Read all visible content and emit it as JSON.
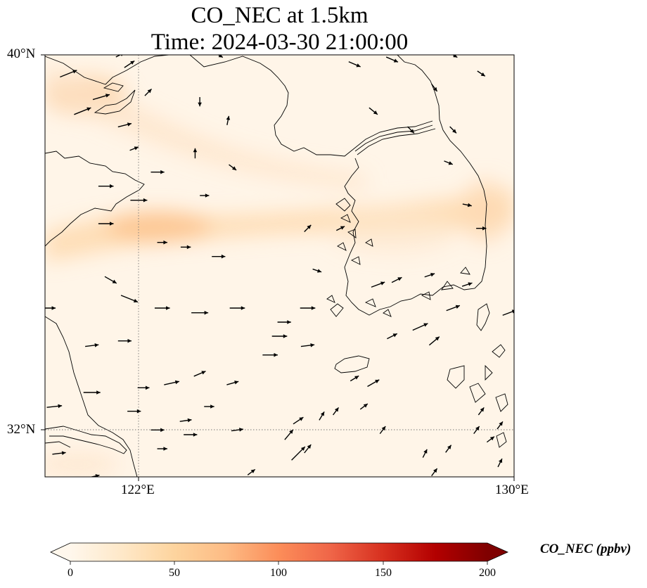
{
  "title": {
    "line1": "CO_NEC at 1.5km",
    "line2": "Time: 2024-03-30 21:00:00"
  },
  "axes": {
    "lat_labels": [
      "40°N",
      "32°N"
    ],
    "lon_labels": [
      "122°E",
      "130°E"
    ],
    "lat_range": [
      31,
      40
    ],
    "lon_range": [
      120,
      130
    ],
    "gridlines": {
      "lat": [
        32
      ],
      "lon": [
        122
      ]
    }
  },
  "colorbar": {
    "label": "CO_NEC (ppbv)",
    "ticks": [
      "0",
      "50",
      "100",
      "150",
      "200"
    ],
    "range": [
      0,
      200
    ],
    "extend": "both",
    "colors": [
      "#fff7ec",
      "#fee8c8",
      "#fdd49e",
      "#fdbb84",
      "#fc8d59",
      "#ef6548",
      "#d7301f",
      "#b30000",
      "#7f0000"
    ]
  },
  "chart_data": {
    "type": "heatmap",
    "variable": "CO_NEC",
    "units": "ppbv",
    "field_description": "band of elevated CO_NEC (about 40-60 ppbv) crossing from 120E 34.5N through 123E 35.3N toward 129E 35.5N; secondary maximum near 120.5-122E 39.3N; background about 5-20 ppbv",
    "wind_vectors": [
      {
        "lon": 120.5,
        "lat": 39.6,
        "u": 1,
        "v": 0.4
      },
      {
        "lon": 120.8,
        "lat": 38.8,
        "u": 1,
        "v": 0.4
      },
      {
        "lon": 121.2,
        "lat": 39.1,
        "u": 1,
        "v": 0.3
      },
      {
        "lon": 121.7,
        "lat": 38.5,
        "u": 0.8,
        "v": 0.2
      },
      {
        "lon": 121.8,
        "lat": 39.8,
        "u": 0.6,
        "v": 0.4
      },
      {
        "lon": 121.9,
        "lat": 38.0,
        "u": 0.5,
        "v": 0.2
      },
      {
        "lon": 122.4,
        "lat": 37.5,
        "u": 0.8,
        "v": 0
      },
      {
        "lon": 121.3,
        "lat": 37.2,
        "u": 0.9,
        "v": 0
      },
      {
        "lon": 122.0,
        "lat": 36.9,
        "u": 1,
        "v": 0
      },
      {
        "lon": 123.2,
        "lat": 37.9,
        "u": 0,
        "v": 0.6
      },
      {
        "lon": 123.4,
        "lat": 37.0,
        "u": 0.4,
        "v": 0
      },
      {
        "lon": 123.9,
        "lat": 38.6,
        "u": 0.1,
        "v": 0.5
      },
      {
        "lon": 124.0,
        "lat": 37.6,
        "u": 0.4,
        "v": -0.3
      },
      {
        "lon": 123.3,
        "lat": 39.0,
        "u": 0,
        "v": -0.5
      },
      {
        "lon": 122.2,
        "lat": 39.2,
        "u": 0.4,
        "v": 0.4
      },
      {
        "lon": 121.3,
        "lat": 36.4,
        "u": 0.9,
        "v": 0
      },
      {
        "lon": 122.5,
        "lat": 36.0,
        "u": 0.6,
        "v": 0
      },
      {
        "lon": 123.0,
        "lat": 35.9,
        "u": 0.6,
        "v": 0
      },
      {
        "lon": 123.7,
        "lat": 35.7,
        "u": 0.8,
        "v": 0
      },
      {
        "lon": 121.4,
        "lat": 35.2,
        "u": 0.7,
        "v": -0.4
      },
      {
        "lon": 121.8,
        "lat": 34.8,
        "u": 1,
        "v": -0.4
      },
      {
        "lon": 122.5,
        "lat": 34.6,
        "u": 0.9,
        "v": 0
      },
      {
        "lon": 123.3,
        "lat": 34.5,
        "u": 1,
        "v": 0
      },
      {
        "lon": 124.1,
        "lat": 34.6,
        "u": 0.9,
        "v": 0
      },
      {
        "lon": 120.1,
        "lat": 34.6,
        "u": 0.7,
        "v": 0
      },
      {
        "lon": 121.0,
        "lat": 33.8,
        "u": 0.8,
        "v": 0.1
      },
      {
        "lon": 121.7,
        "lat": 33.9,
        "u": 0.8,
        "v": 0
      },
      {
        "lon": 122.1,
        "lat": 32.9,
        "u": 0.7,
        "v": 0
      },
      {
        "lon": 121.9,
        "lat": 32.4,
        "u": 0.8,
        "v": 0
      },
      {
        "lon": 121.0,
        "lat": 32.8,
        "u": 1,
        "v": 0
      },
      {
        "lon": 120.2,
        "lat": 32.5,
        "u": 0.9,
        "v": 0.1
      },
      {
        "lon": 120.3,
        "lat": 31.5,
        "u": 0.8,
        "v": 0.1
      },
      {
        "lon": 121.0,
        "lat": 31.0,
        "u": 0.9,
        "v": 0.2
      },
      {
        "lon": 122.5,
        "lat": 31.6,
        "u": 0.6,
        "v": 0
      },
      {
        "lon": 122.4,
        "lat": 32.0,
        "u": 0.8,
        "v": 0
      },
      {
        "lon": 123.1,
        "lat": 31.9,
        "u": 0.8,
        "v": 0
      },
      {
        "lon": 122.7,
        "lat": 33.0,
        "u": 0.9,
        "v": 0.2
      },
      {
        "lon": 123.0,
        "lat": 32.2,
        "u": 0.7,
        "v": 0.1
      },
      {
        "lon": 123.5,
        "lat": 32.5,
        "u": 0.6,
        "v": 0
      },
      {
        "lon": 123.3,
        "lat": 33.2,
        "u": 0.7,
        "v": 0.3
      },
      {
        "lon": 124.0,
        "lat": 33.0,
        "u": 0.7,
        "v": 0.2
      },
      {
        "lon": 124.1,
        "lat": 32.0,
        "u": 0.7,
        "v": 0.1
      },
      {
        "lon": 124.4,
        "lat": 31.1,
        "u": 0.4,
        "v": 0.3
      },
      {
        "lon": 124.8,
        "lat": 33.6,
        "u": 0.9,
        "v": 0
      },
      {
        "lon": 125.0,
        "lat": 34.0,
        "u": 0.9,
        "v": 0
      },
      {
        "lon": 125.1,
        "lat": 34.3,
        "u": 0.8,
        "v": 0
      },
      {
        "lon": 125.6,
        "lat": 33.8,
        "u": 0.8,
        "v": 0.1
      },
      {
        "lon": 125.6,
        "lat": 34.6,
        "u": 0.9,
        "v": 0
      },
      {
        "lon": 125.4,
        "lat": 32.2,
        "u": 0.6,
        "v": 0.4
      },
      {
        "lon": 125.2,
        "lat": 31.9,
        "u": 0.5,
        "v": 0.6
      },
      {
        "lon": 125.4,
        "lat": 31.5,
        "u": 0.8,
        "v": 0.8
      },
      {
        "lon": 125.9,
        "lat": 32.3,
        "u": 0.3,
        "v": 0.5
      },
      {
        "lon": 126.2,
        "lat": 32.4,
        "u": 0.3,
        "v": 0.4
      },
      {
        "lon": 125.6,
        "lat": 31.6,
        "u": 0.4,
        "v": 0.5
      },
      {
        "lon": 126.0,
        "lat": 30.7,
        "u": 0.3,
        "v": 0.4
      },
      {
        "lon": 126.8,
        "lat": 32.5,
        "u": 0.4,
        "v": 0.3
      },
      {
        "lon": 127.2,
        "lat": 32.0,
        "u": 0.3,
        "v": 0.4
      },
      {
        "lon": 126.6,
        "lat": 33.1,
        "u": 0.5,
        "v": 0.3
      },
      {
        "lon": 127.0,
        "lat": 33.0,
        "u": 0.7,
        "v": 0.4
      },
      {
        "lon": 127.4,
        "lat": 34.0,
        "u": 0.6,
        "v": 0.3
      },
      {
        "lon": 125.8,
        "lat": 35.4,
        "u": 0.3,
        "v": -0.1
      },
      {
        "lon": 125.6,
        "lat": 36.3,
        "u": 0.4,
        "v": 0.4
      },
      {
        "lon": 126.3,
        "lat": 36.3,
        "u": 0.4,
        "v": 0.2
      },
      {
        "lon": 127.1,
        "lat": 35.1,
        "u": 0.8,
        "v": 0.3
      },
      {
        "lon": 127.5,
        "lat": 35.2,
        "u": 0.6,
        "v": 0.3
      },
      {
        "lon": 128.0,
        "lat": 34.2,
        "u": 0.9,
        "v": 0.4
      },
      {
        "lon": 128.7,
        "lat": 34.6,
        "u": 0.8,
        "v": 0.3
      },
      {
        "lon": 129.0,
        "lat": 35.1,
        "u": 0.6,
        "v": 0.2
      },
      {
        "lon": 129.9,
        "lat": 34.5,
        "u": 0.8,
        "v": 0.3
      },
      {
        "lon": 129.3,
        "lat": 32.4,
        "u": 0.3,
        "v": 0.4
      },
      {
        "lon": 129.5,
        "lat": 31.8,
        "u": 0.4,
        "v": 0.3
      },
      {
        "lon": 129.7,
        "lat": 32.1,
        "u": 0.3,
        "v": 0.4
      },
      {
        "lon": 129.2,
        "lat": 32.0,
        "u": 0.3,
        "v": 0.4
      },
      {
        "lon": 128.6,
        "lat": 31.6,
        "u": 0.3,
        "v": 0.4
      },
      {
        "lon": 128.1,
        "lat": 31.5,
        "u": 0.2,
        "v": 0.4
      },
      {
        "lon": 128.3,
        "lat": 31.1,
        "u": 0.3,
        "v": 0.4
      },
      {
        "lon": 129.0,
        "lat": 30.8,
        "u": 0.2,
        "v": 0.3
      },
      {
        "lon": 129.7,
        "lat": 31.3,
        "u": 0.2,
        "v": 0.4
      },
      {
        "lon": 127.0,
        "lat": 38.8,
        "u": 0.5,
        "v": -0.4
      },
      {
        "lon": 127.8,
        "lat": 38.4,
        "u": 0.3,
        "v": -0.3
      },
      {
        "lon": 128.3,
        "lat": 39.3,
        "u": 0.3,
        "v": -0.4
      },
      {
        "lon": 128.7,
        "lat": 38.4,
        "u": 0.3,
        "v": -0.3
      },
      {
        "lon": 129.3,
        "lat": 39.6,
        "u": 0.3,
        "v": -0.2
      },
      {
        "lon": 128.6,
        "lat": 37.7,
        "u": 0.5,
        "v": -0.2
      },
      {
        "lon": 129.0,
        "lat": 36.8,
        "u": 0.5,
        "v": -0.1
      },
      {
        "lon": 129.3,
        "lat": 36.3,
        "u": 0.6,
        "v": 0
      },
      {
        "lon": 126.6,
        "lat": 39.8,
        "u": 0.7,
        "v": -0.3
      },
      {
        "lon": 127.4,
        "lat": 39.9,
        "u": 0.7,
        "v": -0.3
      },
      {
        "lon": 128.7,
        "lat": 40.0,
        "u": 0.5,
        "v": -0.3
      },
      {
        "lon": 123.7,
        "lat": 40.0,
        "u": 0.5,
        "v": -0.3
      },
      {
        "lon": 121.6,
        "lat": 40.0,
        "u": 0.4,
        "v": 0.2
      },
      {
        "lon": 128.3,
        "lat": 33.9,
        "u": 0.6,
        "v": 0.5
      },
      {
        "lon": 128.2,
        "lat": 35.3,
        "u": 0.6,
        "v": 0.2
      }
    ]
  }
}
